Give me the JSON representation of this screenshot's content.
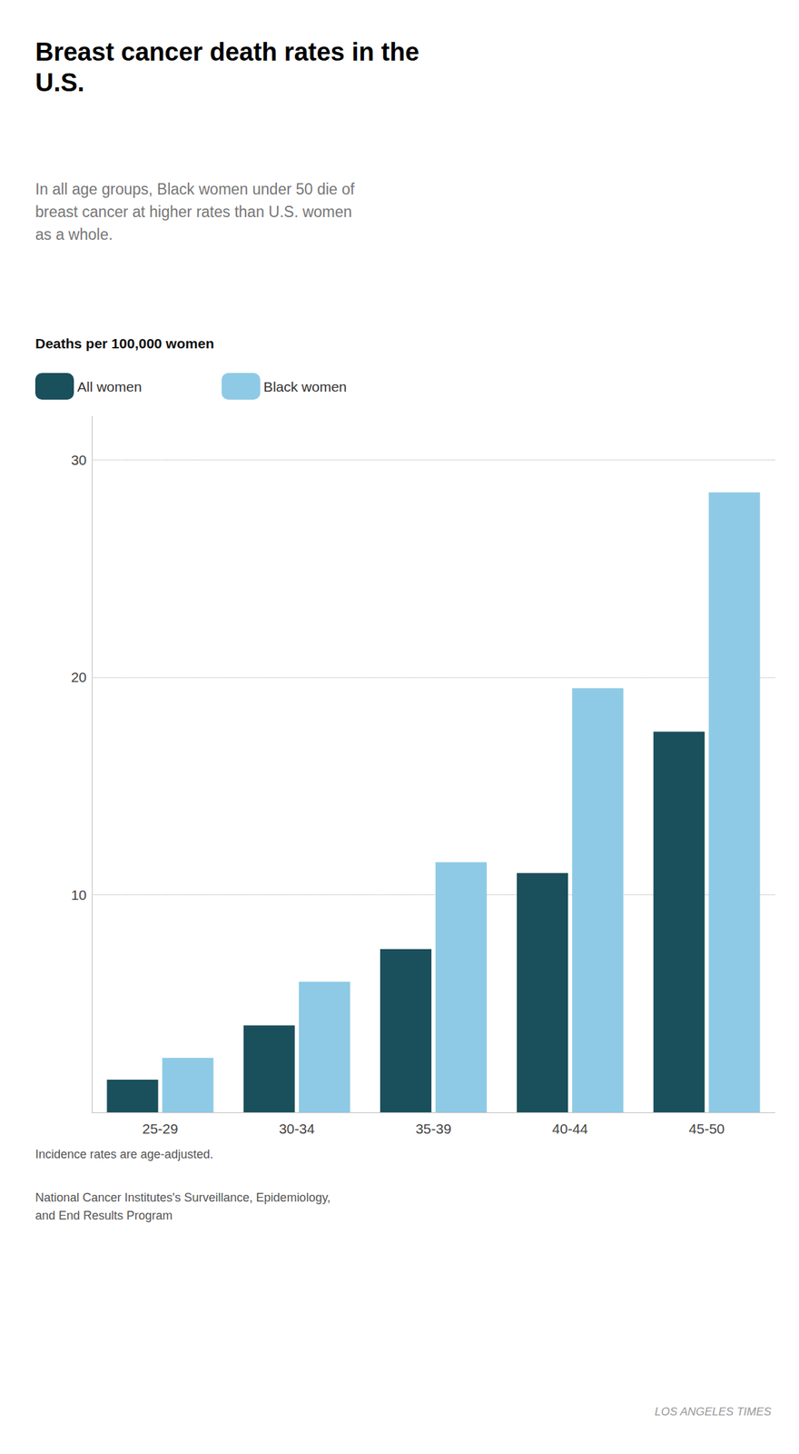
{
  "chart_data": {
    "type": "bar",
    "title": "Breast cancer death rates in the\nU.S.",
    "subtitle": "In all age groups, Black women under 50 die of\nbreast cancer at higher rates than U.S. women\nas a whole.",
    "ylabel": "Deaths per 100,000 women",
    "categories": [
      "25-29",
      "30-34",
      "35-39",
      "40-44",
      "45-50"
    ],
    "series": [
      {
        "name": "All women",
        "color": "#1a4f5c",
        "values": [
          1.5,
          4.0,
          7.5,
          11.0,
          17.5
        ]
      },
      {
        "name": "Black women",
        "color": "#8ecae6",
        "values": [
          2.5,
          6.0,
          11.5,
          19.5,
          28.5
        ]
      }
    ],
    "ylim": [
      0,
      32
    ],
    "yticks": [
      10,
      20,
      30
    ],
    "grid": true,
    "legend": "upper left",
    "annotations": [
      "Incidence rates are age-adjusted.",
      "National Cancer Institutes's Surveillance, Epidemiology,\nand End Results Program",
      "LOS ANGELES TIMES"
    ]
  }
}
